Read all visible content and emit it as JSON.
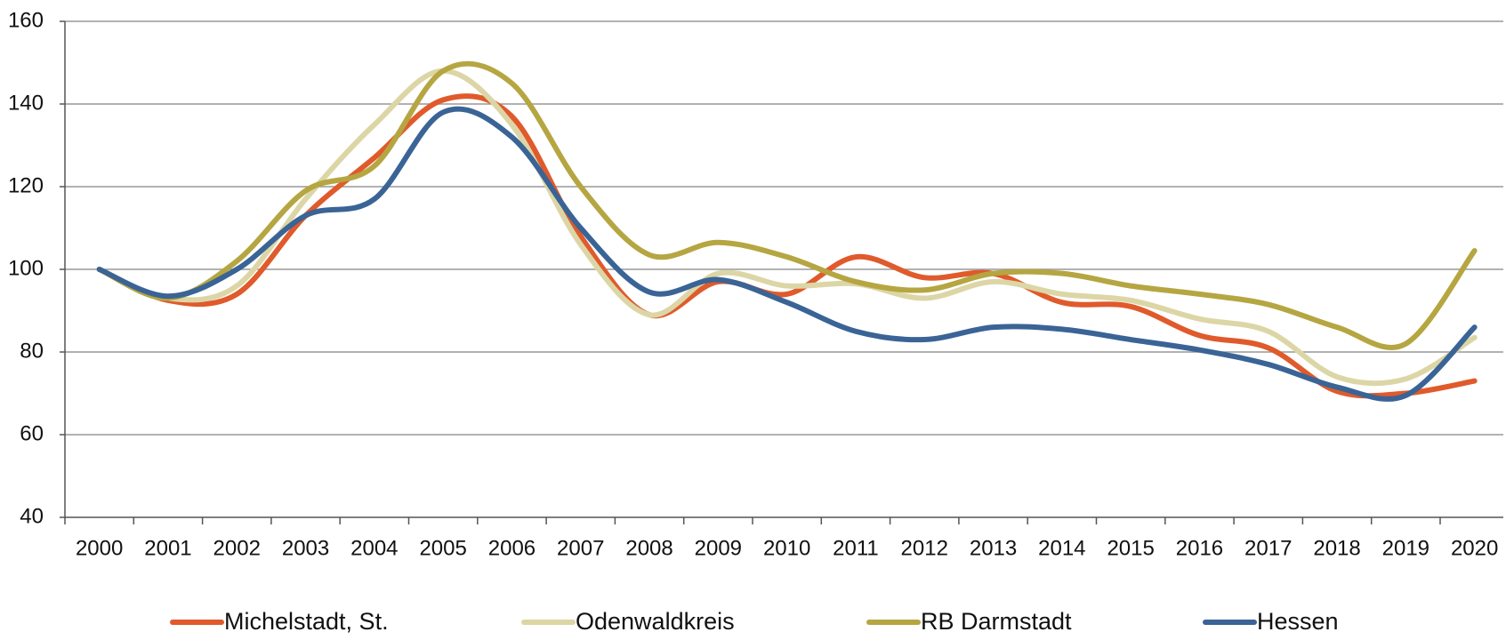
{
  "chart_data": {
    "type": "line",
    "categories": [
      "2000",
      "2001",
      "2002",
      "2003",
      "2004",
      "2005",
      "2006",
      "2007",
      "2008",
      "2009",
      "2010",
      "2011",
      "2012",
      "2013",
      "2014",
      "2015",
      "2016",
      "2017",
      "2018",
      "2019",
      "2020"
    ],
    "series": [
      {
        "name": "Michelstadt, St.",
        "color": "#e05a2b",
        "values": [
          100,
          92.5,
          94,
          113,
          127,
          141,
          137,
          108,
          89,
          97,
          94,
          103,
          98,
          99,
          92,
          91,
          84,
          81,
          70.5,
          70,
          73
        ]
      },
      {
        "name": "Odenwaldkreis",
        "color": "#dcd6a6",
        "values": [
          100,
          93,
          96,
          117,
          135,
          148,
          135,
          106,
          89,
          99,
          96,
          96.5,
          93,
          97,
          94,
          92.5,
          88,
          85,
          74,
          73.5,
          83.5
        ]
      },
      {
        "name": "RB Darmstadt",
        "color": "#b5a642",
        "values": [
          100,
          93,
          102,
          119,
          125,
          148,
          145,
          120,
          103.5,
          106.5,
          103,
          97,
          95,
          99,
          99,
          96,
          94,
          91.5,
          86,
          82,
          104.5
        ]
      },
      {
        "name": "Hessen",
        "color": "#3a6496",
        "values": [
          100,
          93.5,
          100,
          113,
          117,
          138,
          132,
          110,
          94.5,
          97.5,
          92,
          85,
          83,
          86,
          85.5,
          83,
          80.5,
          77,
          71.5,
          69.5,
          86
        ]
      }
    ],
    "ylim": [
      40,
      160
    ],
    "yticks": [
      40,
      60,
      80,
      100,
      120,
      140,
      160
    ],
    "grid": true
  }
}
